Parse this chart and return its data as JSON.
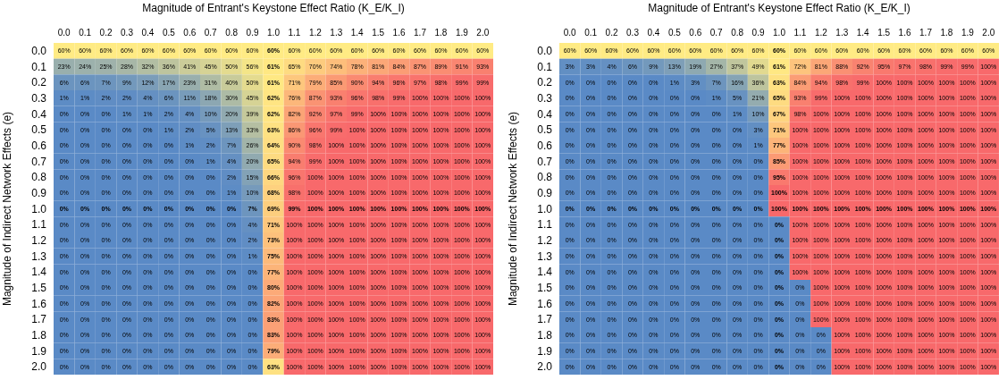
{
  "chart_data": [
    {
      "type": "heatmap",
      "xlabel": "Magnitude of Entrant's Keystone Effect Ratio (K_E/K_I)",
      "ylabel": "Magnitude of Indirect Network Effects (e)",
      "categories": [
        "0.0",
        "0.1",
        "0.2",
        "0.3",
        "0.4",
        "0.5",
        "0.6",
        "0.7",
        "0.8",
        "0.9",
        "1.0",
        "1.1",
        "1.2",
        "1.3",
        "1.4",
        "1.5",
        "1.6",
        "1.7",
        "1.8",
        "1.9",
        "2.0"
      ],
      "y_categories": [
        "0.0",
        "0.1",
        "0.2",
        "0.3",
        "0.4",
        "0.5",
        "0.6",
        "0.7",
        "0.8",
        "0.9",
        "1.0",
        "1.1",
        "1.2",
        "1.3",
        "1.4",
        "1.5",
        "1.6",
        "1.7",
        "1.8",
        "1.9",
        "2.0"
      ],
      "cells": [
        [
          60,
          60,
          60,
          60,
          60,
          60,
          60,
          60,
          60,
          60,
          60,
          60,
          60,
          60,
          60,
          60,
          60,
          60,
          60,
          60,
          60
        ],
        [
          23,
          24,
          25,
          28,
          32,
          36,
          41,
          45,
          50,
          56,
          61,
          65,
          70,
          74,
          78,
          81,
          84,
          87,
          89,
          91,
          93
        ],
        [
          6,
          6,
          7,
          9,
          12,
          17,
          23,
          31,
          40,
          50,
          61,
          71,
          79,
          85,
          90,
          94,
          96,
          97,
          98,
          99,
          99
        ],
        [
          1,
          1,
          2,
          2,
          4,
          6,
          11,
          18,
          30,
          45,
          62,
          76,
          87,
          93,
          96,
          98,
          99,
          100,
          100,
          100,
          100
        ],
        [
          0,
          0,
          0,
          1,
          1,
          2,
          4,
          10,
          20,
          39,
          62,
          82,
          92,
          97,
          99,
          100,
          100,
          100,
          100,
          100,
          100
        ],
        [
          0,
          0,
          0,
          0,
          0,
          1,
          2,
          5,
          13,
          33,
          63,
          86,
          96,
          99,
          100,
          100,
          100,
          100,
          100,
          100,
          100
        ],
        [
          0,
          0,
          0,
          0,
          0,
          0,
          1,
          2,
          7,
          26,
          64,
          90,
          98,
          100,
          100,
          100,
          100,
          100,
          100,
          100,
          100
        ],
        [
          0,
          0,
          0,
          0,
          0,
          0,
          0,
          1,
          4,
          20,
          65,
          94,
          99,
          100,
          100,
          100,
          100,
          100,
          100,
          100,
          100
        ],
        [
          0,
          0,
          0,
          0,
          0,
          0,
          0,
          0,
          2,
          15,
          66,
          96,
          100,
          100,
          100,
          100,
          100,
          100,
          100,
          100,
          100
        ],
        [
          0,
          0,
          0,
          0,
          0,
          0,
          0,
          0,
          1,
          10,
          68,
          98,
          100,
          100,
          100,
          100,
          100,
          100,
          100,
          100,
          100
        ],
        [
          0,
          0,
          0,
          0,
          0,
          0,
          0,
          0,
          0,
          7,
          69,
          99,
          100,
          100,
          100,
          100,
          100,
          100,
          100,
          100,
          100
        ],
        [
          0,
          0,
          0,
          0,
          0,
          0,
          0,
          0,
          0,
          4,
          71,
          100,
          100,
          100,
          100,
          100,
          100,
          100,
          100,
          100,
          100
        ],
        [
          0,
          0,
          0,
          0,
          0,
          0,
          0,
          0,
          0,
          2,
          73,
          100,
          100,
          100,
          100,
          100,
          100,
          100,
          100,
          100,
          100
        ],
        [
          0,
          0,
          0,
          0,
          0,
          0,
          0,
          0,
          0,
          1,
          75,
          100,
          100,
          100,
          100,
          100,
          100,
          100,
          100,
          100,
          100
        ],
        [
          0,
          0,
          0,
          0,
          0,
          0,
          0,
          0,
          0,
          0,
          77,
          100,
          100,
          100,
          100,
          100,
          100,
          100,
          100,
          100,
          100
        ],
        [
          0,
          0,
          0,
          0,
          0,
          0,
          0,
          0,
          0,
          0,
          80,
          100,
          100,
          100,
          100,
          100,
          100,
          100,
          100,
          100,
          100
        ],
        [
          0,
          0,
          0,
          0,
          0,
          0,
          0,
          0,
          0,
          0,
          82,
          100,
          100,
          100,
          100,
          100,
          100,
          100,
          100,
          100,
          100
        ],
        [
          0,
          0,
          0,
          0,
          0,
          0,
          0,
          0,
          0,
          0,
          83,
          100,
          100,
          100,
          100,
          100,
          100,
          100,
          100,
          100,
          100
        ],
        [
          0,
          0,
          0,
          0,
          0,
          0,
          0,
          0,
          0,
          0,
          83,
          100,
          100,
          100,
          100,
          100,
          100,
          100,
          100,
          100,
          100
        ],
        [
          0,
          0,
          0,
          0,
          0,
          0,
          0,
          0,
          0,
          0,
          79,
          100,
          100,
          100,
          100,
          100,
          100,
          100,
          100,
          100,
          100
        ],
        [
          0,
          0,
          0,
          0,
          0,
          0,
          0,
          0,
          0,
          0,
          63,
          100,
          100,
          100,
          100,
          100,
          100,
          100,
          100,
          100,
          100
        ]
      ],
      "cell_labels": [
        [
          "60%",
          "60%",
          "60%",
          "60%",
          "60%",
          "60%",
          "60%",
          "60%",
          "60%",
          "60%",
          "60%",
          "60%",
          "60%",
          "60%",
          "60%",
          "60%",
          "60%",
          "60%",
          "60%",
          "60%",
          "60%"
        ],
        [
          "23%",
          "24%",
          "25%",
          "28%",
          "32%",
          "36%",
          "41%",
          "45%",
          "50%",
          "56%",
          "61%",
          "65%",
          "70%",
          "74%",
          "78%",
          "81%",
          "84%",
          "87%",
          "89%",
          "91%",
          "93%"
        ],
        [
          "6%",
          "6%",
          "7%",
          "9%",
          "12%",
          "17%",
          "23%",
          "31%",
          "40%",
          "50%",
          "61%",
          "71%",
          "79%",
          "85%",
          "90%",
          "94%",
          "96%",
          "97%",
          "98%",
          "99%",
          "99%"
        ],
        [
          "1%",
          "1%",
          "2%",
          "2%",
          "4%",
          "6%",
          "11%",
          "18%",
          "30%",
          "45%",
          "62%",
          "76%",
          "87%",
          "93%",
          "96%",
          "98%",
          "99%",
          "100%",
          "100%",
          "100%",
          "100%"
        ],
        [
          "0%",
          "0%",
          "0%",
          "1%",
          "1%",
          "2%",
          "4%",
          "10%",
          "20%",
          "39%",
          "62%",
          "82%",
          "92%",
          "97%",
          "99%",
          "100%",
          "100%",
          "100%",
          "100%",
          "100%",
          "100%"
        ],
        [
          "0%",
          "0%",
          "0%",
          "0%",
          "0%",
          "1%",
          "2%",
          "5%",
          "13%",
          "33%",
          "63%",
          "86%",
          "96%",
          "99%",
          "100%",
          "100%",
          "100%",
          "100%",
          "100%",
          "100%",
          "100%"
        ],
        [
          "0%",
          "0%",
          "0%",
          "0%",
          "0%",
          "0%",
          "1%",
          "2%",
          "7%",
          "26%",
          "64%",
          "90%",
          "98%",
          "100%",
          "100%",
          "100%",
          "100%",
          "100%",
          "100%",
          "100%",
          "100%"
        ],
        [
          "0%",
          "0%",
          "0%",
          "0%",
          "0%",
          "0%",
          "0%",
          "1%",
          "4%",
          "20%",
          "65%",
          "94%",
          "99%",
          "100%",
          "100%",
          "100%",
          "100%",
          "100%",
          "100%",
          "100%",
          "100%"
        ],
        [
          "0%",
          "0%",
          "0%",
          "0%",
          "0%",
          "0%",
          "0%",
          "0%",
          "2%",
          "15%",
          "66%",
          "96%",
          "100%",
          "100%",
          "100%",
          "100%",
          "100%",
          "100%",
          "100%",
          "100%",
          "100%"
        ],
        [
          "0%",
          "0%",
          "0%",
          "0%",
          "0%",
          "0%",
          "0%",
          "0%",
          "1%",
          "10%",
          "68%",
          "98%",
          "100%",
          "100%",
          "100%",
          "100%",
          "100%",
          "100%",
          "100%",
          "100%",
          "100%"
        ],
        [
          "0%",
          "0%",
          "0%",
          "0%",
          "0%",
          "0%",
          "0%",
          "0%",
          "0%",
          "7%",
          "69%",
          "99%",
          "100%",
          "100%",
          "100%",
          "100%",
          "100%",
          "100%",
          "100%",
          "100%",
          "100%"
        ],
        [
          "0%",
          "0%",
          "0%",
          "0%",
          "0%",
          "0%",
          "0%",
          "0%",
          "0%",
          "4%",
          "71%",
          "100%",
          "100%",
          "100%",
          "100%",
          "100%",
          "100%",
          "100%",
          "100%",
          "100%",
          "100%"
        ],
        [
          "0%",
          "0%",
          "0%",
          "0%",
          "0%",
          "0%",
          "0%",
          "0%",
          "0%",
          "2%",
          "73%",
          "100%",
          "100%",
          "100%",
          "100%",
          "100%",
          "100%",
          "100%",
          "100%",
          "100%",
          "100%"
        ],
        [
          "0%",
          "0%",
          "0%",
          "0%",
          "0%",
          "0%",
          "0%",
          "0%",
          "0%",
          "1%",
          "75%",
          "100%",
          "100%",
          "100%",
          "100%",
          "100%",
          "100%",
          "100%",
          "100%",
          "100%",
          "100%"
        ],
        [
          "0%",
          "0%",
          "0%",
          "0%",
          "0%",
          "0%",
          "0%",
          "0%",
          "0%",
          "0%",
          "77%",
          "100%",
          "100%",
          "100%",
          "100%",
          "100%",
          "100%",
          "100%",
          "100%",
          "100%",
          "100%"
        ],
        [
          "0%",
          "0%",
          "0%",
          "0%",
          "0%",
          "0%",
          "0%",
          "0%",
          "0%",
          "0%",
          "80%",
          "100%",
          "100%",
          "100%",
          "100%",
          "100%",
          "100%",
          "100%",
          "100%",
          "100%",
          "100%"
        ],
        [
          "0%",
          "0%",
          "0%",
          "0%",
          "0%",
          "0%",
          "0%",
          "0%",
          "0%",
          "0%",
          "82%",
          "100%",
          "100%",
          "100%",
          "100%",
          "100%",
          "100%",
          "100%",
          "100%",
          "100%",
          "100%"
        ],
        [
          "0%",
          "0%",
          "0%",
          "0%",
          "0%",
          "0%",
          "0%",
          "0%",
          "0%",
          "0%",
          "83%",
          "100%",
          "100%",
          "100%",
          "100%",
          "100%",
          "100%",
          "100%",
          "100%",
          "100%",
          "100%"
        ],
        [
          "0%",
          "0%",
          "0%",
          "0%",
          "0%",
          "0%",
          "0%",
          "0%",
          "0%",
          "0%",
          "83%",
          "100%",
          "100%",
          "100%",
          "100%",
          "100%",
          "100%",
          "100%",
          "100%",
          "100%",
          "100%"
        ],
        [
          "0%",
          "0%",
          "0%",
          "0%",
          "0%",
          "0%",
          "0%",
          "0%",
          "0%",
          "0%",
          "79%",
          "100%",
          "100%",
          "100%",
          "100%",
          "100%",
          "100%",
          "100%",
          "100%",
          "100%",
          "100%"
        ],
        [
          "0%",
          "0%",
          "0%",
          "0%",
          "0%",
          "0%",
          "0%",
          "0%",
          "0%",
          "0%",
          "63%",
          "100%",
          "100%",
          "100%",
          "100%",
          "100%",
          "100%",
          "100%",
          "100%",
          "100%",
          "100%"
        ]
      ]
    },
    {
      "type": "heatmap",
      "xlabel": "Magnitude of Entrant's Keystone Effect Ratio (K_E/K_I)",
      "ylabel": "Magnitude of Indirect Network Effects (e)",
      "categories": [
        "0.0",
        "0.1",
        "0.2",
        "0.3",
        "0.4",
        "0.5",
        "0.6",
        "0.7",
        "0.8",
        "0.9",
        "1.0",
        "1.1",
        "1.2",
        "1.3",
        "1.4",
        "1.5",
        "1.6",
        "1.7",
        "1.8",
        "1.9",
        "2.0"
      ],
      "y_categories": [
        "0.0",
        "0.1",
        "0.2",
        "0.3",
        "0.4",
        "0.5",
        "0.6",
        "0.7",
        "0.8",
        "0.9",
        "1.0",
        "1.1",
        "1.2",
        "1.3",
        "1.4",
        "1.5",
        "1.6",
        "1.7",
        "1.8",
        "1.9",
        "2.0"
      ],
      "cells": [
        [
          60,
          60,
          60,
          60,
          60,
          60,
          60,
          60,
          60,
          60,
          60,
          60,
          60,
          60,
          60,
          60,
          60,
          60,
          60,
          60,
          60
        ],
        [
          3,
          3,
          4,
          6,
          9,
          13,
          19,
          27,
          37,
          49,
          61,
          72,
          81,
          88,
          92,
          95,
          97,
          98,
          99,
          99,
          100
        ],
        [
          0,
          0,
          0,
          0,
          0,
          1,
          3,
          7,
          16,
          36,
          63,
          84,
          94,
          98,
          99,
          100,
          100,
          100,
          100,
          100,
          100
        ],
        [
          0,
          0,
          0,
          0,
          0,
          0,
          0,
          1,
          5,
          21,
          65,
          93,
          99,
          100,
          100,
          100,
          100,
          100,
          100,
          100,
          100
        ],
        [
          0,
          0,
          0,
          0,
          0,
          0,
          0,
          0,
          1,
          10,
          67,
          98,
          100,
          100,
          100,
          100,
          100,
          100,
          100,
          100,
          100
        ],
        [
          0,
          0,
          0,
          0,
          0,
          0,
          0,
          0,
          0,
          3,
          71,
          100,
          100,
          100,
          100,
          100,
          100,
          100,
          100,
          100,
          100
        ],
        [
          0,
          0,
          0,
          0,
          0,
          0,
          0,
          0,
          0,
          1,
          77,
          100,
          100,
          100,
          100,
          100,
          100,
          100,
          100,
          100,
          100
        ],
        [
          0,
          0,
          0,
          0,
          0,
          0,
          0,
          0,
          0,
          0,
          85,
          100,
          100,
          100,
          100,
          100,
          100,
          100,
          100,
          100,
          100
        ],
        [
          0,
          0,
          0,
          0,
          0,
          0,
          0,
          0,
          0,
          0,
          95,
          100,
          100,
          100,
          100,
          100,
          100,
          100,
          100,
          100,
          100
        ],
        [
          0,
          0,
          0,
          0,
          0,
          0,
          0,
          0,
          0,
          0,
          100,
          100,
          100,
          100,
          100,
          100,
          100,
          100,
          100,
          100,
          100
        ],
        [
          0,
          0,
          0,
          0,
          0,
          0,
          0,
          0,
          0,
          0,
          100,
          100,
          100,
          100,
          100,
          100,
          100,
          100,
          100,
          100,
          100
        ],
        [
          0,
          0,
          0,
          0,
          0,
          0,
          0,
          0,
          0,
          0,
          0,
          100,
          100,
          100,
          100,
          100,
          100,
          100,
          100,
          100,
          100
        ],
        [
          0,
          0,
          0,
          0,
          0,
          0,
          0,
          0,
          0,
          0,
          0,
          100,
          100,
          100,
          100,
          100,
          100,
          100,
          100,
          100,
          100
        ],
        [
          0,
          0,
          0,
          0,
          0,
          0,
          0,
          0,
          0,
          0,
          0,
          100,
          100,
          100,
          100,
          100,
          100,
          100,
          100,
          100,
          100
        ],
        [
          0,
          0,
          0,
          0,
          0,
          0,
          0,
          0,
          0,
          0,
          0,
          100,
          100,
          100,
          100,
          100,
          100,
          100,
          100,
          100,
          100
        ],
        [
          0,
          0,
          0,
          0,
          0,
          0,
          0,
          0,
          0,
          0,
          0,
          0,
          100,
          100,
          100,
          100,
          100,
          100,
          100,
          100,
          100
        ],
        [
          0,
          0,
          0,
          0,
          0,
          0,
          0,
          0,
          0,
          0,
          0,
          0,
          100,
          100,
          100,
          100,
          100,
          100,
          100,
          100,
          100
        ],
        [
          0,
          0,
          0,
          0,
          0,
          0,
          0,
          0,
          0,
          0,
          0,
          0,
          100,
          100,
          100,
          100,
          100,
          100,
          100,
          100,
          100
        ],
        [
          0,
          0,
          0,
          0,
          0,
          0,
          0,
          0,
          0,
          0,
          0,
          0,
          0,
          100,
          100,
          100,
          100,
          100,
          100,
          100,
          100
        ],
        [
          0,
          0,
          0,
          0,
          0,
          0,
          0,
          0,
          0,
          0,
          0,
          0,
          0,
          100,
          100,
          100,
          100,
          100,
          100,
          100,
          100
        ],
        [
          0,
          0,
          0,
          0,
          0,
          0,
          0,
          0,
          0,
          0,
          0,
          0,
          0,
          100,
          100,
          100,
          100,
          100,
          100,
          100,
          100
        ]
      ],
      "cell_labels": [
        [
          "60%",
          "60%",
          "60%",
          "60%",
          "60%",
          "60%",
          "60%",
          "60%",
          "60%",
          "60%",
          "60%",
          "60%",
          "60%",
          "60%",
          "60%",
          "60%",
          "60%",
          "60%",
          "60%",
          "60%",
          "60%"
        ],
        [
          "3%",
          "3%",
          "4%",
          "6%",
          "9%",
          "13%",
          "19%",
          "27%",
          "37%",
          "49%",
          "61%",
          "72%",
          "81%",
          "88%",
          "92%",
          "95%",
          "97%",
          "98%",
          "99%",
          "99%",
          "100%"
        ],
        [
          "0%",
          "0%",
          "0%",
          "0%",
          "0%",
          "1%",
          "3%",
          "7%",
          "16%",
          "36%",
          "63%",
          "84%",
          "94%",
          "98%",
          "99%",
          "100%",
          "100%",
          "100%",
          "100%",
          "100%",
          "100%"
        ],
        [
          "0%",
          "0%",
          "0%",
          "0%",
          "0%",
          "0%",
          "0%",
          "1%",
          "5%",
          "21%",
          "65%",
          "93%",
          "99%",
          "100%",
          "100%",
          "100%",
          "100%",
          "100%",
          "100%",
          "100%",
          "100%"
        ],
        [
          "0%",
          "0%",
          "0%",
          "0%",
          "0%",
          "0%",
          "0%",
          "0%",
          "1%",
          "10%",
          "67%",
          "98%",
          "100%",
          "100%",
          "100%",
          "100%",
          "100%",
          "100%",
          "100%",
          "100%",
          "100%"
        ],
        [
          "0%",
          "0%",
          "0%",
          "0%",
          "0%",
          "0%",
          "0%",
          "0%",
          "0%",
          "3%",
          "71%",
          "100%",
          "100%",
          "100%",
          "100%",
          "100%",
          "100%",
          "100%",
          "100%",
          "100%",
          "100%"
        ],
        [
          "0%",
          "0%",
          "0%",
          "0%",
          "0%",
          "0%",
          "0%",
          "0%",
          "0%",
          "1%",
          "77%",
          "100%",
          "100%",
          "100%",
          "100%",
          "100%",
          "100%",
          "100%",
          "100%",
          "100%",
          "100%"
        ],
        [
          "0%",
          "0%",
          "0%",
          "0%",
          "0%",
          "0%",
          "0%",
          "0%",
          "0%",
          "0%",
          "85%",
          "100%",
          "100%",
          "100%",
          "100%",
          "100%",
          "100%",
          "100%",
          "100%",
          "100%",
          "100%"
        ],
        [
          "0%",
          "0%",
          "0%",
          "0%",
          "0%",
          "0%",
          "0%",
          "0%",
          "0%",
          "0%",
          "95%",
          "100%",
          "100%",
          "100%",
          "100%",
          "100%",
          "100%",
          "100%",
          "100%",
          "100%",
          "100%"
        ],
        [
          "0%",
          "0%",
          "0%",
          "0%",
          "0%",
          "0%",
          "0%",
          "0%",
          "0%",
          "0%",
          "100%",
          "100%",
          "100%",
          "100%",
          "100%",
          "100%",
          "100%",
          "100%",
          "100%",
          "100%",
          "100%"
        ],
        [
          "0%",
          "0%",
          "0%",
          "0%",
          "0%",
          "0%",
          "0%",
          "0%",
          "0%",
          "0%",
          "100%",
          "100%",
          "100%",
          "100%",
          "100%",
          "100%",
          "100%",
          "100%",
          "100%",
          "100%",
          "100%"
        ],
        [
          "0%",
          "0%",
          "0%",
          "0%",
          "0%",
          "0%",
          "0%",
          "0%",
          "0%",
          "0%",
          "0%",
          "100%",
          "100%",
          "100%",
          "100%",
          "100%",
          "100%",
          "100%",
          "100%",
          "100%",
          "100%"
        ],
        [
          "0%",
          "0%",
          "0%",
          "0%",
          "0%",
          "0%",
          "0%",
          "0%",
          "0%",
          "0%",
          "0%",
          "100%",
          "100%",
          "100%",
          "100%",
          "100%",
          "100%",
          "100%",
          "100%",
          "100%",
          "100%"
        ],
        [
          "0%",
          "0%",
          "0%",
          "0%",
          "0%",
          "0%",
          "0%",
          "0%",
          "0%",
          "0%",
          "0%",
          "100%",
          "100%",
          "100%",
          "100%",
          "100%",
          "100%",
          "100%",
          "100%",
          "100%",
          "100%"
        ],
        [
          "0%",
          "0%",
          "0%",
          "0%",
          "0%",
          "0%",
          "0%",
          "0%",
          "0%",
          "0%",
          "0%",
          "100%",
          "100%",
          "100%",
          "100%",
          "100%",
          "100%",
          "100%",
          "100%",
          "100%",
          "100%"
        ],
        [
          "0%",
          "0%",
          "0%",
          "0%",
          "0%",
          "0%",
          "0%",
          "0%",
          "0%",
          "0%",
          "0%",
          "0%",
          "100%",
          "100%",
          "100%",
          "100%",
          "100%",
          "100%",
          "100%",
          "100%",
          "100%"
        ],
        [
          "0%",
          "0%",
          "0%",
          "0%",
          "0%",
          "0%",
          "0%",
          "0%",
          "0%",
          "0%",
          "0%",
          "0%",
          "100%",
          "100%",
          "100%",
          "100%",
          "100%",
          "100%",
          "100%",
          "100%",
          "100%"
        ],
        [
          "0%",
          "0%",
          "0%",
          "0%",
          "0%",
          "0%",
          "0%",
          "0%",
          "0%",
          "0%",
          "0%",
          "0%",
          "100%",
          "100%",
          "100%",
          "100%",
          "100%",
          "100%",
          "100%",
          "100%",
          "100%"
        ],
        [
          "0%",
          "0%",
          "0%",
          "0%",
          "0%",
          "0%",
          "0%",
          "0%",
          "0%",
          "0%",
          "0%",
          "0%",
          "0%",
          "100%",
          "100%",
          "100%",
          "100%",
          "100%",
          "100%",
          "100%",
          "100%"
        ],
        [
          "0%",
          "0%",
          "0%",
          "0%",
          "0%",
          "0%",
          "0%",
          "0%",
          "0%",
          "0%",
          "0%",
          "0%",
          "0%",
          "100%",
          "100%",
          "100%",
          "100%",
          "100%",
          "100%",
          "100%",
          "100%"
        ],
        [
          "0%",
          "0%",
          "0%",
          "0%",
          "0%",
          "0%",
          "0%",
          "0%",
          "0%",
          "0%",
          "0%",
          "0%",
          "0%",
          "100%",
          "100%",
          "100%",
          "100%",
          "100%",
          "100%",
          "100%",
          "100%"
        ]
      ]
    }
  ]
}
